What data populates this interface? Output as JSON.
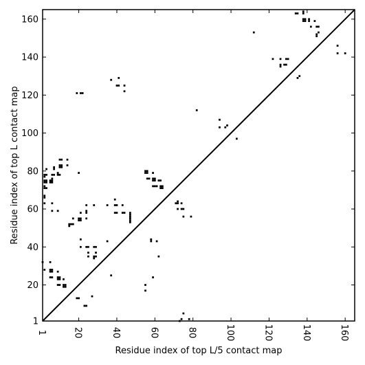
{
  "chart_data": {
    "type": "scatter",
    "xlabel": "Residue index of top L/5 contact map",
    "ylabel": "Residue index of top L contact map",
    "xlim": [
      1,
      165
    ],
    "ylim": [
      1,
      165
    ],
    "xticks": [
      1,
      20,
      40,
      60,
      80,
      100,
      120,
      140,
      160
    ],
    "yticks": [
      1,
      20,
      40,
      60,
      80,
      100,
      120,
      140,
      160
    ],
    "diagonal_line": true,
    "grid": false,
    "marker_color": "#000000",
    "series": [
      {
        "region": "above-diagonal",
        "points": [
          [
            1,
            32
          ],
          [
            2,
            28
          ],
          [
            2,
            63
          ],
          [
            2,
            66
          ],
          [
            2,
            67
          ],
          [
            2,
            71
          ],
          [
            2,
            72
          ],
          [
            2,
            74
          ],
          [
            2,
            75
          ],
          [
            2,
            77
          ],
          [
            2,
            78
          ],
          [
            3,
            71
          ],
          [
            3,
            74
          ],
          [
            3,
            75
          ],
          [
            3,
            78
          ],
          [
            3,
            81
          ],
          [
            5,
            24
          ],
          [
            5,
            27
          ],
          [
            5,
            28
          ],
          [
            5,
            32
          ],
          [
            5,
            74
          ],
          [
            5,
            75
          ],
          [
            6,
            24
          ],
          [
            6,
            27
          ],
          [
            6,
            28
          ],
          [
            6,
            59
          ],
          [
            6,
            63
          ],
          [
            6,
            74
          ],
          [
            6,
            75
          ],
          [
            6,
            76
          ],
          [
            6,
            78
          ],
          [
            7,
            78
          ],
          [
            7,
            81
          ],
          [
            7,
            82
          ],
          [
            9,
            20
          ],
          [
            9,
            23
          ],
          [
            9,
            24
          ],
          [
            9,
            27
          ],
          [
            9,
            59
          ],
          [
            9,
            78
          ],
          [
            9,
            79
          ],
          [
            10,
            20
          ],
          [
            10,
            23
          ],
          [
            10,
            24
          ],
          [
            10,
            78
          ],
          [
            10,
            82
          ],
          [
            10,
            83
          ],
          [
            10,
            86
          ],
          [
            11,
            82
          ],
          [
            11,
            83
          ],
          [
            11,
            86
          ],
          [
            12,
            19
          ],
          [
            12,
            20
          ],
          [
            12,
            23
          ],
          [
            13,
            19
          ],
          [
            13,
            20
          ],
          [
            14,
            83
          ],
          [
            14,
            86
          ],
          [
            15,
            51
          ],
          [
            15,
            52
          ],
          [
            16,
            52
          ],
          [
            17,
            52
          ],
          [
            17,
            55
          ],
          [
            19,
            13
          ],
          [
            19,
            121
          ],
          [
            20,
            13
          ],
          [
            20,
            54
          ],
          [
            20,
            55
          ],
          [
            20,
            79
          ],
          [
            21,
            40
          ],
          [
            21,
            44
          ],
          [
            21,
            54
          ],
          [
            21,
            55
          ],
          [
            21,
            58
          ],
          [
            21,
            121
          ],
          [
            22,
            121
          ],
          [
            23,
            9
          ],
          [
            24,
            9
          ],
          [
            24,
            40
          ],
          [
            24,
            55
          ],
          [
            24,
            58
          ],
          [
            24,
            59
          ],
          [
            24,
            62
          ],
          [
            25,
            35
          ],
          [
            25,
            37
          ],
          [
            25,
            40
          ],
          [
            27,
            14
          ],
          [
            28,
            34
          ],
          [
            28,
            35
          ],
          [
            28,
            40
          ],
          [
            28,
            62
          ],
          [
            29,
            35
          ],
          [
            29,
            37
          ],
          [
            29,
            40
          ],
          [
            35,
            43
          ],
          [
            35,
            62
          ],
          [
            37,
            25
          ],
          [
            37,
            128
          ],
          [
            39,
            58
          ],
          [
            39,
            62
          ],
          [
            39,
            65
          ],
          [
            40,
            58
          ],
          [
            40,
            62
          ],
          [
            40,
            125
          ],
          [
            41,
            125
          ],
          [
            41,
            129
          ],
          [
            43,
            58
          ],
          [
            43,
            62
          ],
          [
            44,
            58
          ],
          [
            44,
            122
          ],
          [
            44,
            125
          ],
          [
            47,
            53
          ],
          [
            47,
            54
          ],
          [
            47,
            55
          ],
          [
            47,
            56
          ],
          [
            47,
            57
          ],
          [
            47,
            58
          ],
          [
            55,
            17
          ],
          [
            55,
            20
          ],
          [
            55,
            79
          ],
          [
            55,
            80
          ],
          [
            56,
            76
          ],
          [
            56,
            79
          ],
          [
            56,
            80
          ],
          [
            57,
            76
          ],
          [
            58,
            43
          ],
          [
            58,
            44
          ],
          [
            59,
            24
          ],
          [
            59,
            72
          ],
          [
            59,
            75
          ],
          [
            59,
            76
          ],
          [
            59,
            79
          ],
          [
            60,
            72
          ],
          [
            60,
            75
          ],
          [
            60,
            76
          ],
          [
            61,
            43
          ],
          [
            61,
            72
          ],
          [
            62,
            35
          ],
          [
            62,
            75
          ],
          [
            63,
            71
          ],
          [
            63,
            72
          ],
          [
            63,
            75
          ],
          [
            64,
            71
          ],
          [
            64,
            72
          ],
          [
            71,
            63
          ],
          [
            72,
            60
          ],
          [
            72,
            63
          ],
          [
            72,
            64
          ],
          [
            73,
            1
          ],
          [
            74,
            2
          ],
          [
            74,
            60
          ],
          [
            74,
            63
          ],
          [
            75,
            5
          ],
          [
            75,
            60
          ],
          [
            75,
            56
          ],
          [
            78,
            2
          ],
          [
            79,
            56
          ],
          [
            82,
            112
          ],
          [
            94,
            103
          ],
          [
            94,
            107
          ],
          [
            97,
            103
          ],
          [
            98,
            104
          ],
          [
            103,
            97
          ],
          [
            112,
            153
          ],
          [
            122,
            139
          ],
          [
            126,
            135
          ],
          [
            126,
            136
          ],
          [
            126,
            139
          ],
          [
            128,
            136
          ],
          [
            129,
            136
          ],
          [
            129,
            139
          ],
          [
            130,
            139
          ],
          [
            134,
            163
          ],
          [
            135,
            163
          ],
          [
            135,
            129
          ],
          [
            136,
            130
          ],
          [
            138,
            159
          ],
          [
            138,
            160
          ],
          [
            138,
            163
          ],
          [
            138,
            164
          ],
          [
            139,
            159
          ],
          [
            139,
            160
          ],
          [
            141,
            159
          ],
          [
            141,
            160
          ],
          [
            142,
            156
          ],
          [
            144,
            159
          ],
          [
            145,
            151
          ],
          [
            145,
            152
          ],
          [
            145,
            156
          ],
          [
            146,
            153
          ],
          [
            146,
            156
          ],
          [
            156,
            142
          ],
          [
            156,
            146
          ],
          [
            160,
            142
          ]
        ]
      }
    ]
  }
}
